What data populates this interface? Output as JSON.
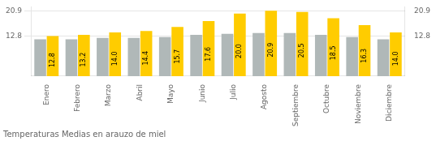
{
  "chart_data": {
    "type": "bar",
    "title": "Temperaturas Medias en arauzo de miel",
    "categories": [
      "Enero",
      "Febrero",
      "Marzo",
      "Abril",
      "Mayo",
      "Junio",
      "Julio",
      "Agosto",
      "Septiembre",
      "Octubre",
      "Noviembre",
      "Diciembre"
    ],
    "series": [
      {
        "color": "#B0B8B8",
        "values": [
          11.8,
          11.8,
          12.2,
          12.2,
          12.5,
          13.2,
          13.5,
          13.8,
          13.8,
          13.2,
          12.5,
          11.8
        ]
      },
      {
        "color": "#FFCC00",
        "data_labels": true,
        "values": [
          12.8,
          13.2,
          14.0,
          14.4,
          15.7,
          17.6,
          20.0,
          20.9,
          20.5,
          18.5,
          16.3,
          14.0
        ],
        "value_labels": [
          "12.8",
          "13.2",
          "14.0",
          "14.4",
          "15.7",
          "17.6",
          "20.0",
          "20.9",
          "20.5",
          "18.5",
          "16.3",
          "14.0"
        ]
      }
    ],
    "ylim": [
      0,
      22.154
    ],
    "yticks": [
      12.8,
      20.9
    ],
    "y2lim": [
      0,
      22.154
    ],
    "y2ticks": [
      12.8,
      20.9
    ],
    "grid": true
  }
}
